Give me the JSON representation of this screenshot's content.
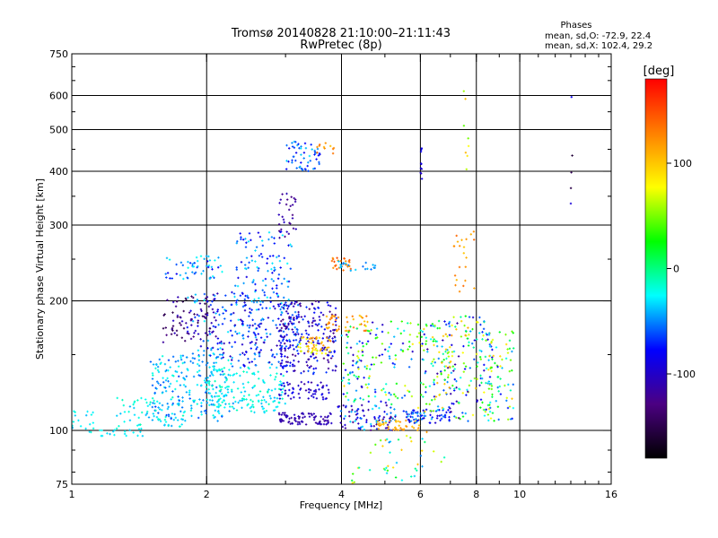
{
  "chart_data": {
    "type": "scatter",
    "title": "Tromsø 20140828 21:10:00–21:11:43",
    "subtitle": "RwPretec (8p)",
    "stats": {
      "heading": "Phases",
      "line1": "mean, sd,O: -72.9, 22.4",
      "line2": "mean, sd,X: 102.4, 29.2"
    },
    "xlabel": "Frequency [MHz]",
    "ylabel": "Stationary phase Virtual Height [km]",
    "x_scale": "log",
    "y_scale": "log",
    "xlim": [
      1,
      16
    ],
    "ylim": [
      75,
      750
    ],
    "x_ticks": [
      1,
      2,
      4,
      6,
      8,
      10,
      16
    ],
    "y_ticks": [
      75,
      100,
      200,
      300,
      400,
      500,
      600,
      750
    ],
    "grid_x": [
      2,
      4,
      6,
      8,
      10
    ],
    "grid_y": [
      100,
      200,
      300,
      400,
      500,
      600
    ],
    "grid": true,
    "colorbar": {
      "label": "[deg]",
      "min": -180,
      "max": 180,
      "ticks": [
        100,
        0,
        -100
      ],
      "colormap": [
        "#000000",
        "#4b0082",
        "#0000ff",
        "#00ffff",
        "#00ff00",
        "#ffff00",
        "#ff8000",
        "#ff0000"
      ]
    },
    "clusters": [
      {
        "x": [
          1.0,
          1.12
        ],
        "y": [
          98,
          112
        ],
        "n": 18,
        "phase": [
          -40,
          -15
        ]
      },
      {
        "x": [
          1.12,
          1.45
        ],
        "y": [
          97,
          101
        ],
        "n": 16,
        "phase": [
          -40,
          -15
        ]
      },
      {
        "x": [
          1.25,
          1.8
        ],
        "y": [
          100,
          120
        ],
        "n": 70,
        "phase": [
          -45,
          -10
        ]
      },
      {
        "x": [
          1.5,
          2.3
        ],
        "y": [
          105,
          150
        ],
        "n": 220,
        "phase": [
          -65,
          -15
        ]
      },
      {
        "x": [
          1.6,
          2.2
        ],
        "y": [
          225,
          255
        ],
        "n": 55,
        "phase": [
          -85,
          -20
        ]
      },
      {
        "x": [
          1.6,
          2.1
        ],
        "y": [
          160,
          205
        ],
        "n": 80,
        "phase": [
          -150,
          -100
        ]
      },
      {
        "x": [
          1.8,
          2.6
        ],
        "y": [
          145,
          210
        ],
        "n": 120,
        "phase": [
          -110,
          -25
        ]
      },
      {
        "x": [
          2.0,
          3.0
        ],
        "y": [
          110,
          140
        ],
        "n": 160,
        "phase": [
          -40,
          -10
        ]
      },
      {
        "x": [
          2.3,
          3.1
        ],
        "y": [
          190,
          290
        ],
        "n": 130,
        "phase": [
          -90,
          -25
        ]
      },
      {
        "x": [
          2.4,
          3.2
        ],
        "y": [
          140,
          200
        ],
        "n": 130,
        "phase": [
          -110,
          -40
        ]
      },
      {
        "x": [
          2.9,
          3.2
        ],
        "y": [
          280,
          360
        ],
        "n": 30,
        "phase": [
          -130,
          -100
        ]
      },
      {
        "x": [
          3.0,
          3.6
        ],
        "y": [
          400,
          470
        ],
        "n": 55,
        "phase": [
          -90,
          -30
        ]
      },
      {
        "x": [
          3.5,
          3.85
        ],
        "y": [
          440,
          470
        ],
        "n": 12,
        "phase": [
          100,
          140
        ]
      },
      {
        "x": [
          2.9,
          3.8
        ],
        "y": [
          103,
          110
        ],
        "n": 80,
        "phase": [
          -120,
          -100
        ]
      },
      {
        "x": [
          2.9,
          3.8
        ],
        "y": [
          118,
          130
        ],
        "n": 60,
        "phase": [
          -120,
          -80
        ]
      },
      {
        "x": [
          2.9,
          3.9
        ],
        "y": [
          135,
          200
        ],
        "n": 220,
        "phase": [
          -130,
          -60
        ]
      },
      {
        "x": [
          3.2,
          3.8
        ],
        "y": [
          150,
          165
        ],
        "n": 50,
        "phase": [
          60,
          130
        ]
      },
      {
        "x": [
          3.8,
          4.2
        ],
        "y": [
          235,
          252
        ],
        "n": 28,
        "phase": [
          110,
          150
        ]
      },
      {
        "x": [
          3.7,
          4.6
        ],
        "y": [
          170,
          185
        ],
        "n": 45,
        "phase": [
          100,
          140
        ]
      },
      {
        "x": [
          3.8,
          4.8
        ],
        "y": [
          235,
          250
        ],
        "n": 20,
        "phase": [
          -55,
          -30
        ]
      },
      {
        "x": [
          3.9,
          5.3
        ],
        "y": [
          100,
          115
        ],
        "n": 90,
        "phase": [
          -130,
          -30
        ]
      },
      {
        "x": [
          4.0,
          5.8
        ],
        "y": [
          115,
          180
        ],
        "n": 150,
        "phase": [
          -110,
          90
        ]
      },
      {
        "x": [
          4.2,
          6.8
        ],
        "y": [
          75,
          100
        ],
        "n": 45,
        "phase": [
          -60,
          120
        ]
      },
      {
        "x": [
          4.8,
          6.0
        ],
        "y": [
          100,
          106
        ],
        "n": 40,
        "phase": [
          90,
          130
        ]
      },
      {
        "x": [
          5.5,
          7.0
        ],
        "y": [
          104,
          112
        ],
        "n": 70,
        "phase": [
          -100,
          -40
        ]
      },
      {
        "x": [
          5.9,
          7.2
        ],
        "y": [
          110,
          180
        ],
        "n": 110,
        "phase": [
          -120,
          110
        ]
      },
      {
        "x": [
          6.8,
          7.7
        ],
        "y": [
          105,
          185
        ],
        "n": 80,
        "phase": [
          -130,
          120
        ]
      },
      {
        "x": [
          7.1,
          8.0
        ],
        "y": [
          210,
          290
        ],
        "n": 22,
        "phase": [
          100,
          140
        ]
      },
      {
        "x": [
          7.7,
          8.7
        ],
        "y": [
          108,
          185
        ],
        "n": 80,
        "phase": [
          -120,
          100
        ]
      },
      {
        "x": [
          8.5,
          9.7
        ],
        "y": [
          105,
          170
        ],
        "n": 70,
        "phase": [
          -80,
          100
        ]
      },
      {
        "x": [
          6.0,
          6.05
        ],
        "y": [
          380,
          455
        ],
        "n": 10,
        "phase": [
          -100,
          -80
        ]
      },
      {
        "x": [
          7.5,
          7.7
        ],
        "y": [
          400,
          620
        ],
        "n": 8,
        "phase": [
          40,
          120
        ]
      },
      {
        "x": [
          13.0,
          13.1
        ],
        "y": [
          310,
          620
        ],
        "n": 5,
        "phase": [
          -170,
          -60
        ]
      }
    ]
  }
}
